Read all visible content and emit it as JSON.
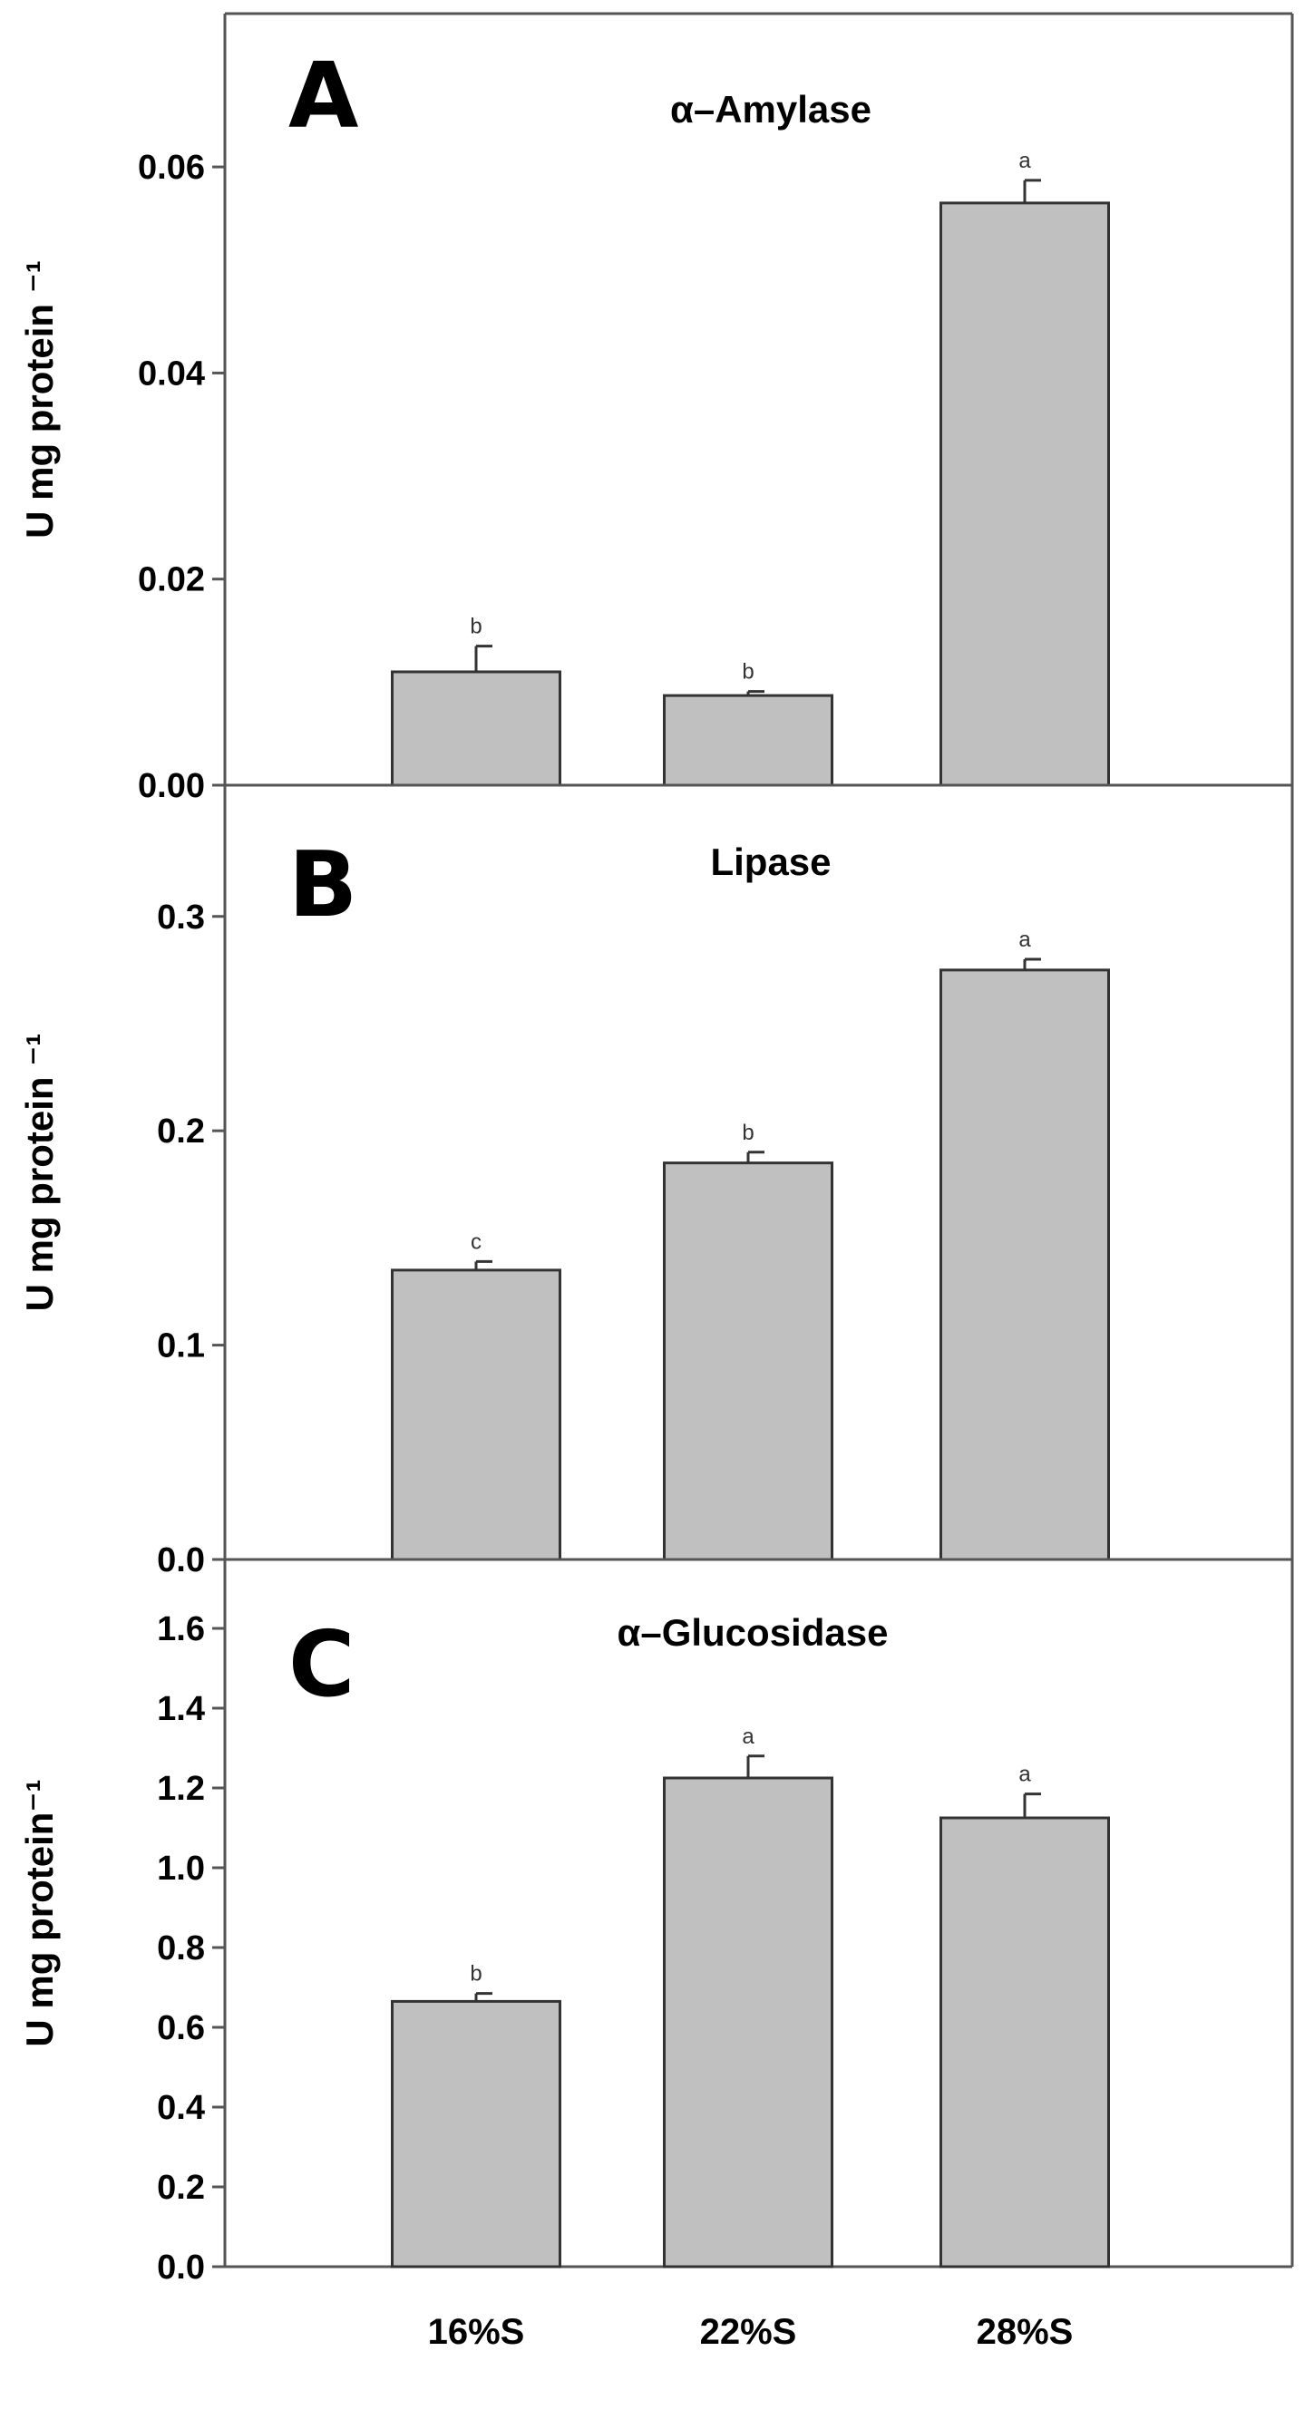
{
  "chart_data": [
    {
      "type": "bar",
      "panel": "A",
      "title": "α–Amylase",
      "ylabel": "U mg protein ⁻¹",
      "xlabel": "",
      "categories": [
        "16%S",
        "22%S",
        "28%S"
      ],
      "values": [
        0.011,
        0.0087,
        0.0565
      ],
      "errors": [
        0.0025,
        0.0004,
        0.0022
      ],
      "significance": [
        "b",
        "b",
        "a"
      ],
      "ylim": [
        0,
        0.074
      ],
      "yticks": [
        "0.00",
        "0.02",
        "0.04",
        "0.06"
      ],
      "ytick_values": [
        0,
        0.02,
        0.04,
        0.06
      ]
    },
    {
      "type": "bar",
      "panel": "B",
      "title": "Lipase",
      "ylabel": "U mg protein ⁻¹",
      "xlabel": "",
      "categories": [
        "16%S",
        "22%S",
        "28%S"
      ],
      "values": [
        0.135,
        0.185,
        0.275
      ],
      "errors": [
        0.004,
        0.005,
        0.005
      ],
      "significance": [
        "c",
        "b",
        "a"
      ],
      "ylim": [
        0,
        0.357
      ],
      "yticks": [
        "0.0",
        "0.1",
        "0.2",
        "0.3"
      ],
      "ytick_values": [
        0,
        0.1,
        0.2,
        0.3
      ]
    },
    {
      "type": "bar",
      "panel": "C",
      "title": "α–Glucosidase",
      "ylabel": "U mg protein⁻¹",
      "xlabel": "",
      "categories": [
        "16%S",
        "22%S",
        "28%S"
      ],
      "values": [
        0.665,
        1.225,
        1.125
      ],
      "errors": [
        0.02,
        0.055,
        0.06
      ],
      "significance": [
        "b",
        "a",
        "a"
      ],
      "ylim": [
        0,
        1.75
      ],
      "yticks": [
        "0.0",
        "0.2",
        "0.4",
        "0.6",
        "0.8",
        "1.0",
        "1.2",
        "1.4",
        "1.6"
      ],
      "ytick_values": [
        0,
        0.2,
        0.4,
        0.6,
        0.8,
        1.0,
        1.2,
        1.4,
        1.6
      ]
    }
  ],
  "colors": {
    "bar_fill": "#c0c0c0",
    "bar_stroke": "#333333",
    "axis": "#555555"
  }
}
